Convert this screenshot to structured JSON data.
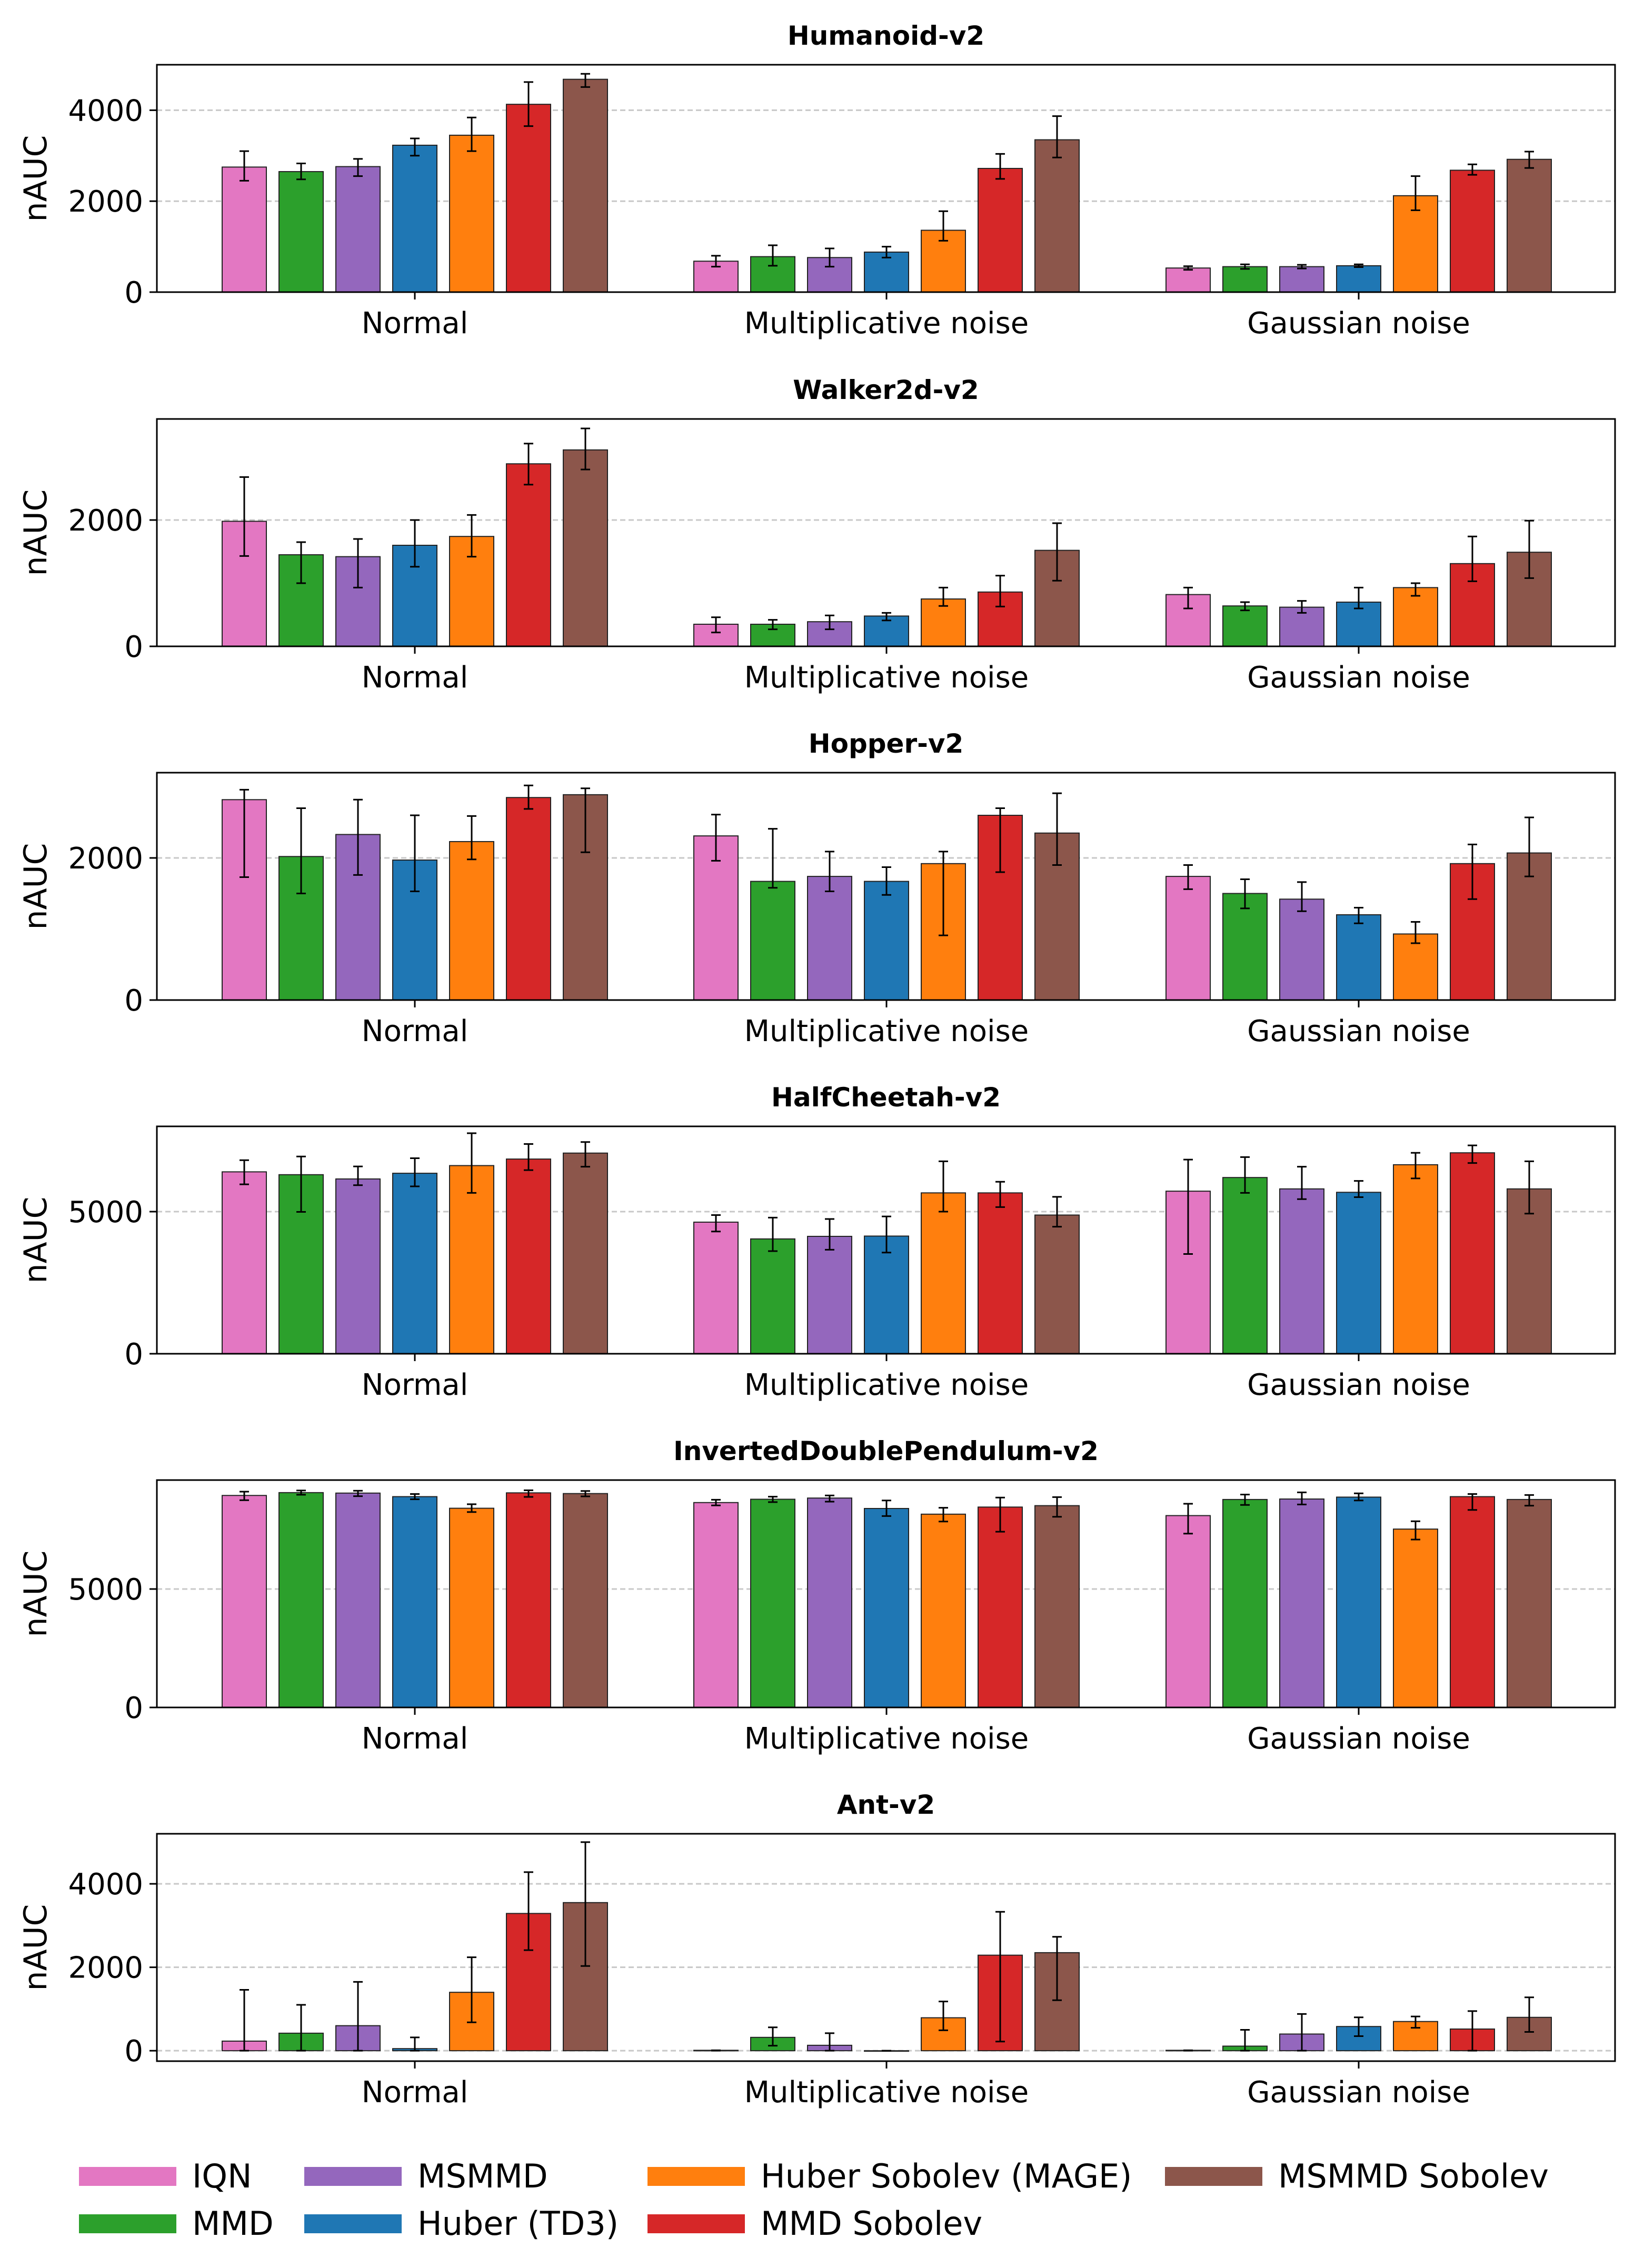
{
  "legend": [
    {
      "name": "IQN",
      "color": "#e377c2"
    },
    {
      "name": "MMD",
      "color": "#2ca02c"
    },
    {
      "name": "MSMMD",
      "color": "#9467bd"
    },
    {
      "name": "Huber (TD3)",
      "color": "#1f77b4"
    },
    {
      "name": "Huber Sobolev (MAGE)",
      "color": "#ff7f0e"
    },
    {
      "name": "MMD Sobolev",
      "color": "#d62728"
    },
    {
      "name": "MSMMD Sobolev",
      "color": "#8c564b"
    }
  ],
  "chart_data": [
    {
      "type": "bar",
      "title": "Humanoid-v2",
      "ylabel": "nAUC",
      "categories": [
        "Normal",
        "Multiplicative noise",
        "Gaussian noise"
      ],
      "ylim": [
        0,
        5000
      ],
      "yticks": [
        0,
        2000,
        4000
      ],
      "series": [
        {
          "name": "IQN",
          "values": [
            2750,
            680,
            530
          ],
          "err": [
            [
              2450,
              3100
            ],
            [
              560,
              800
            ],
            [
              490,
              570
            ]
          ]
        },
        {
          "name": "MMD",
          "values": [
            2650,
            780,
            560
          ],
          "err": [
            [
              2480,
              2830
            ],
            [
              580,
              1030
            ],
            [
              510,
              610
            ]
          ]
        },
        {
          "name": "MSMMD",
          "values": [
            2760,
            760,
            560
          ],
          "err": [
            [
              2550,
              2930
            ],
            [
              560,
              960
            ],
            [
              520,
              600
            ]
          ]
        },
        {
          "name": "Huber (TD3)",
          "values": [
            3230,
            880,
            580
          ],
          "err": [
            [
              3000,
              3380
            ],
            [
              760,
              1000
            ],
            [
              550,
              610
            ]
          ]
        },
        {
          "name": "Huber Sobolev (MAGE)",
          "values": [
            3450,
            1360,
            2120
          ],
          "err": [
            [
              3100,
              3840
            ],
            [
              1130,
              1780
            ],
            [
              1800,
              2550
            ]
          ]
        },
        {
          "name": "MMD Sobolev",
          "values": [
            4130,
            2720,
            2680
          ],
          "err": [
            [
              3650,
              4620
            ],
            [
              2490,
              3040
            ],
            [
              2580,
              2810
            ]
          ]
        },
        {
          "name": "MSMMD Sobolev",
          "values": [
            4680,
            3350,
            2920
          ],
          "err": [
            [
              4510,
              4800
            ],
            [
              2960,
              3870
            ],
            [
              2730,
              3090
            ]
          ]
        }
      ]
    },
    {
      "type": "bar",
      "title": "Walker2d-v2",
      "ylabel": "nAUC",
      "categories": [
        "Normal",
        "Multiplicative noise",
        "Gaussian noise"
      ],
      "ylim": [
        0,
        3600
      ],
      "yticks": [
        0,
        2000
      ],
      "series": [
        {
          "name": "IQN",
          "values": [
            1980,
            350,
            820
          ],
          "err": [
            [
              1430,
              2680
            ],
            [
              220,
              460
            ],
            [
              600,
              930
            ]
          ]
        },
        {
          "name": "MMD",
          "values": [
            1450,
            350,
            640
          ],
          "err": [
            [
              1000,
              1650
            ],
            [
              270,
              420
            ],
            [
              570,
              700
            ]
          ]
        },
        {
          "name": "MSMMD",
          "values": [
            1420,
            390,
            620
          ],
          "err": [
            [
              930,
              1700
            ],
            [
              270,
              490
            ],
            [
              530,
              720
            ]
          ]
        },
        {
          "name": "Huber (TD3)",
          "values": [
            1600,
            480,
            700
          ],
          "err": [
            [
              1260,
              2000
            ],
            [
              410,
              530
            ],
            [
              600,
              930
            ]
          ]
        },
        {
          "name": "Huber Sobolev (MAGE)",
          "values": [
            1740,
            750,
            930
          ],
          "err": [
            [
              1420,
              2080
            ],
            [
              640,
              930
            ],
            [
              800,
              1000
            ]
          ]
        },
        {
          "name": "MMD Sobolev",
          "values": [
            2890,
            860,
            1310
          ],
          "err": [
            [
              2560,
              3210
            ],
            [
              630,
              1120
            ],
            [
              1030,
              1740
            ]
          ]
        },
        {
          "name": "MSMMD Sobolev",
          "values": [
            3110,
            1520,
            1490
          ],
          "err": [
            [
              2800,
              3450
            ],
            [
              1040,
              1950
            ],
            [
              1080,
              1990
            ]
          ]
        }
      ]
    },
    {
      "type": "bar",
      "title": "Hopper-v2",
      "ylabel": "nAUC",
      "categories": [
        "Normal",
        "Multiplicative noise",
        "Gaussian noise"
      ],
      "ylim": [
        0,
        3200
      ],
      "yticks": [
        0,
        2000
      ],
      "series": [
        {
          "name": "IQN",
          "values": [
            2820,
            2310,
            1740
          ],
          "err": [
            [
              1730,
              2960
            ],
            [
              1960,
              2610
            ],
            [
              1560,
              1900
            ]
          ]
        },
        {
          "name": "MMD",
          "values": [
            2020,
            1670,
            1500
          ],
          "err": [
            [
              1500,
              2700
            ],
            [
              1580,
              2410
            ],
            [
              1290,
              1700
            ]
          ]
        },
        {
          "name": "MSMMD",
          "values": [
            2330,
            1740,
            1420
          ],
          "err": [
            [
              1760,
              2820
            ],
            [
              1530,
              2090
            ],
            [
              1250,
              1660
            ]
          ]
        },
        {
          "name": "Huber (TD3)",
          "values": [
            1970,
            1670,
            1200
          ],
          "err": [
            [
              1530,
              2600
            ],
            [
              1480,
              1870
            ],
            [
              1080,
              1300
            ]
          ]
        },
        {
          "name": "Huber Sobolev (MAGE)",
          "values": [
            2230,
            1920,
            930
          ],
          "err": [
            [
              1980,
              2590
            ],
            [
              910,
              2090
            ],
            [
              800,
              1100
            ]
          ]
        },
        {
          "name": "MMD Sobolev",
          "values": [
            2850,
            2600,
            1920
          ],
          "err": [
            [
              2690,
              3020
            ],
            [
              1800,
              2700
            ],
            [
              1420,
              2190
            ]
          ]
        },
        {
          "name": "MSMMD Sobolev",
          "values": [
            2890,
            2350,
            2070
          ],
          "err": [
            [
              2080,
              2980
            ],
            [
              1900,
              2910
            ],
            [
              1740,
              2570
            ]
          ]
        }
      ]
    },
    {
      "type": "bar",
      "title": "HalfCheetah-v2",
      "ylabel": "nAUC",
      "categories": [
        "Normal",
        "Multiplicative noise",
        "Gaussian noise"
      ],
      "ylim": [
        0,
        8000
      ],
      "yticks": [
        0,
        5000
      ],
      "series": [
        {
          "name": "IQN",
          "values": [
            6400,
            4630,
            5720
          ],
          "err": [
            [
              5960,
              6810
            ],
            [
              4300,
              4880
            ],
            [
              3510,
              6830
            ]
          ]
        },
        {
          "name": "MMD",
          "values": [
            6300,
            4040,
            6200
          ],
          "err": [
            [
              4990,
              6940
            ],
            [
              3610,
              4790
            ],
            [
              5660,
              6920
            ]
          ]
        },
        {
          "name": "MSMMD",
          "values": [
            6150,
            4130,
            5800
          ],
          "err": [
            [
              5930,
              6590
            ],
            [
              3660,
              4740
            ],
            [
              5440,
              6580
            ]
          ]
        },
        {
          "name": "Huber (TD3)",
          "values": [
            6350,
            4140,
            5680
          ],
          "err": [
            [
              5890,
              6880
            ],
            [
              3560,
              4830
            ],
            [
              5510,
              6080
            ]
          ]
        },
        {
          "name": "Huber Sobolev (MAGE)",
          "values": [
            6620,
            5660,
            6650
          ],
          "err": [
            [
              5660,
              7760
            ],
            [
              5000,
              6770
            ],
            [
              6170,
              7070
            ]
          ]
        },
        {
          "name": "MMD Sobolev",
          "values": [
            6850,
            5660,
            7070
          ],
          "err": [
            [
              6460,
              7380
            ],
            [
              5160,
              6050
            ],
            [
              6710,
              7330
            ]
          ]
        },
        {
          "name": "MSMMD Sobolev",
          "values": [
            7060,
            4880,
            5800
          ],
          "err": [
            [
              6580,
              7450
            ],
            [
              4470,
              5520
            ],
            [
              4930,
              6770
            ]
          ]
        }
      ]
    },
    {
      "type": "bar",
      "title": "InvertedDoublePendulum-v2",
      "ylabel": "nAUC",
      "categories": [
        "Normal",
        "Multiplicative noise",
        "Gaussian noise"
      ],
      "ylim": [
        0,
        9600
      ],
      "yticks": [
        0,
        5000
      ],
      "series": [
        {
          "name": "IQN",
          "values": [
            8950,
            8650,
            8100
          ],
          "err": [
            [
              8750,
              9110
            ],
            [
              8530,
              8770
            ],
            [
              7340,
              8600
            ]
          ]
        },
        {
          "name": "MMD",
          "values": [
            9070,
            8790,
            8780
          ],
          "err": [
            [
              8980,
              9160
            ],
            [
              8670,
              8900
            ],
            [
              8550,
              8990
            ]
          ]
        },
        {
          "name": "MSMMD",
          "values": [
            9050,
            8840,
            8800
          ],
          "err": [
            [
              8920,
              9150
            ],
            [
              8690,
              8950
            ],
            [
              8570,
              9080
            ]
          ]
        },
        {
          "name": "Huber (TD3)",
          "values": [
            8900,
            8400,
            8880
          ],
          "err": [
            [
              8790,
              9010
            ],
            [
              8080,
              8740
            ],
            [
              8740,
              9040
            ]
          ]
        },
        {
          "name": "Huber Sobolev (MAGE)",
          "values": [
            8410,
            8160,
            7530
          ],
          "err": [
            [
              8250,
              8580
            ],
            [
              7850,
              8430
            ],
            [
              7090,
              7860
            ]
          ]
        },
        {
          "name": "MMD Sobolev",
          "values": [
            9060,
            8460,
            8900
          ],
          "err": [
            [
              8890,
              9170
            ],
            [
              7420,
              8860
            ],
            [
              8340,
              9010
            ]
          ]
        },
        {
          "name": "MSMMD Sobolev",
          "values": [
            9030,
            8520,
            8780
          ],
          "err": [
            [
              8910,
              9140
            ],
            [
              8050,
              8880
            ],
            [
              8520,
              8970
            ]
          ]
        }
      ]
    },
    {
      "type": "bar",
      "title": "Ant-v2",
      "ylabel": "nAUC",
      "categories": [
        "Normal",
        "Multiplicative noise",
        "Gaussian noise"
      ],
      "ylim": [
        -250,
        5200
      ],
      "yticks": [
        0,
        2000,
        4000
      ],
      "series": [
        {
          "name": "IQN",
          "values": [
            230,
            10,
            10
          ],
          "err": [
            [
              0,
              1460
            ],
            [
              0,
              10
            ],
            [
              0,
              10
            ]
          ]
        },
        {
          "name": "MMD",
          "values": [
            420,
            320,
            110
          ],
          "err": [
            [
              0,
              1100
            ],
            [
              120,
              560
            ],
            [
              0,
              500
            ]
          ]
        },
        {
          "name": "MSMMD",
          "values": [
            600,
            130,
            400
          ],
          "err": [
            [
              0,
              1650
            ],
            [
              0,
              420
            ],
            [
              0,
              880
            ]
          ]
        },
        {
          "name": "Huber (TD3)",
          "values": [
            50,
            0,
            580
          ],
          "err": [
            [
              0,
              320
            ],
            [
              0,
              0
            ],
            [
              350,
              800
            ]
          ]
        },
        {
          "name": "Huber Sobolev (MAGE)",
          "values": [
            1400,
            790,
            700
          ],
          "err": [
            [
              680,
              2240
            ],
            [
              490,
              1180
            ],
            [
              550,
              820
            ]
          ]
        },
        {
          "name": "MMD Sobolev",
          "values": [
            3290,
            2290,
            520
          ],
          "err": [
            [
              2410,
              4280
            ],
            [
              220,
              3330
            ],
            [
              0,
              950
            ]
          ]
        },
        {
          "name": "MSMMD Sobolev",
          "values": [
            3550,
            2350,
            800
          ],
          "err": [
            [
              2030,
              5000
            ],
            [
              1210,
              2730
            ],
            [
              450,
              1280
            ]
          ]
        }
      ]
    }
  ]
}
